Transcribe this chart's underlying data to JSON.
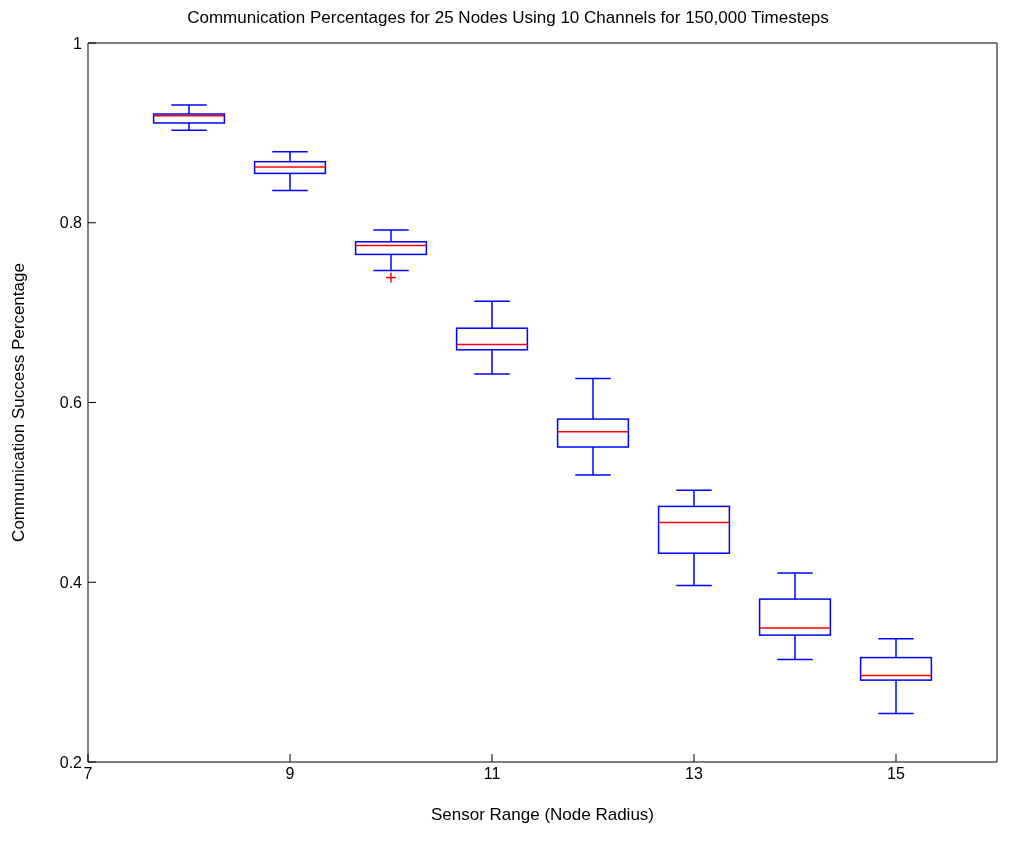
{
  "chart_data": {
    "type": "box",
    "title": "Communication Percentages for 25 Nodes Using 10 Channels for 150,000 Timesteps",
    "xlabel": "Sensor Range (Node Radius)",
    "ylabel": "Communication Success Percentage",
    "x": [
      8,
      9,
      10,
      11,
      12,
      13,
      14,
      15
    ],
    "xlim": [
      7,
      16
    ],
    "xticks": [
      7,
      9,
      11,
      13,
      15
    ],
    "ylim": [
      0.2,
      1
    ],
    "yticks": [
      0.2,
      0.4,
      0.6,
      0.8,
      1
    ],
    "grid": false,
    "series": [
      {
        "color": "#0000ff",
        "boxes": [
          {
            "low": 0.902,
            "q1": 0.91,
            "median": 0.918,
            "q3": 0.92,
            "high": 0.93
          },
          {
            "low": 0.835,
            "q1": 0.854,
            "median": 0.861,
            "q3": 0.867,
            "high": 0.878
          },
          {
            "low": 0.746,
            "q1": 0.764,
            "median": 0.774,
            "q3": 0.778,
            "high": 0.791,
            "outliers": [
              0.739
            ]
          },
          {
            "low": 0.631,
            "q1": 0.658,
            "median": 0.664,
            "q3": 0.682,
            "high": 0.712
          },
          {
            "low": 0.519,
            "q1": 0.55,
            "median": 0.567,
            "q3": 0.581,
            "high": 0.626
          },
          {
            "low": 0.396,
            "q1": 0.432,
            "median": 0.466,
            "q3": 0.484,
            "high": 0.502
          },
          {
            "low": 0.314,
            "q1": 0.341,
            "median": 0.349,
            "q3": 0.381,
            "high": 0.41
          },
          {
            "low": 0.254,
            "q1": 0.291,
            "median": 0.296,
            "q3": 0.316,
            "high": 0.337
          }
        ]
      }
    ]
  }
}
